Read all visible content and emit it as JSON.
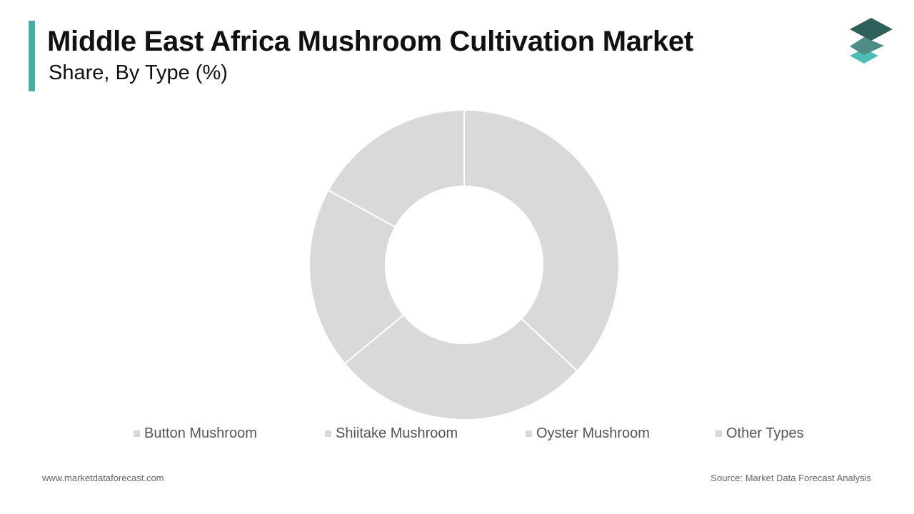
{
  "header": {
    "title": "Middle East Africa Mushroom Cultivation Market",
    "subtitle": "Share, By Type (%)"
  },
  "colors": {
    "accent": "#4aaba6",
    "slice": "#d9d9d9",
    "slice_border": "#ffffff",
    "logo_top": "#2f5f5a",
    "logo_mid": "#4f8c86",
    "logo_bottom": "#4fbdb5"
  },
  "logo": {
    "icon": "stacked-layers-logo-icon"
  },
  "chart_data": {
    "type": "pie",
    "variant": "donut",
    "title": "",
    "categories": [
      "Button Mushroom",
      "Shiitake Mushroom",
      "Oyster Mushroom",
      "Other Types"
    ],
    "values": [
      37,
      27,
      19,
      17
    ],
    "legend_position": "bottom",
    "start_angle": "12 o'clock",
    "direction": "clockwise"
  },
  "legend": {
    "items": [
      "Button Mushroom",
      "Shiitake Mushroom",
      "Oyster Mushroom",
      "Other Types"
    ]
  },
  "footer": {
    "website": "www.marketdataforecast.com",
    "source": "Source: Market Data Forecast Analysis"
  }
}
